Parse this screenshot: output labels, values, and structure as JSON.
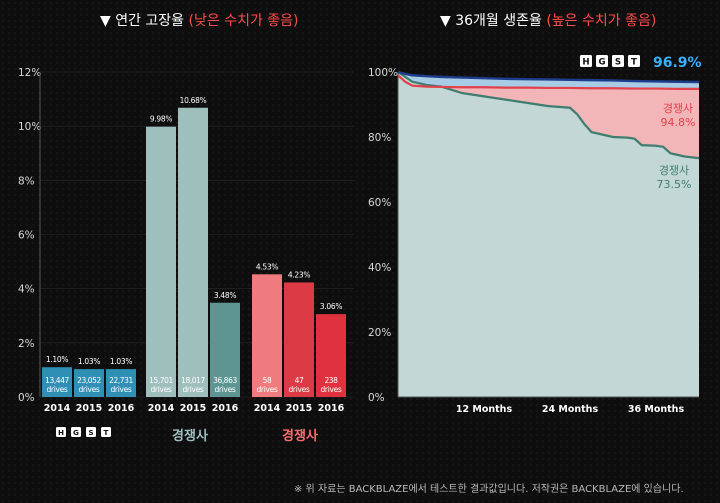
{
  "left_title": {
    "main": "▼ 연간 고장율",
    "sub": "(낮은 수치가 좋음)"
  },
  "right_title": {
    "main": "▼ 36개월 생존율",
    "sub": "(높은 수치가 좋음)"
  },
  "footnote": "※ 위 자료는 BACKBLAZE에서 테스트한 결과값입니다. 저작권은 BACKBLAZE에 있습니다.",
  "colors": {
    "hgst": "#2f8fb4",
    "competitor_a": "#9fbfbd",
    "competitor_a_dark": "#5e9592",
    "competitor_b": "#f07b7f",
    "competitor_b_dark": "#dc3a45",
    "survival_hgst": "#1e3c8c",
    "survival_comp_red": "#e0414a",
    "survival_comp_green": "#3f7d6f"
  },
  "chart_data": [
    {
      "type": "bar",
      "title": "연간 고장율",
      "ylim": [
        0,
        12
      ],
      "yticks": [
        "0%",
        "2%",
        "4%",
        "6%",
        "8%",
        "10%",
        "12%"
      ],
      "groups": [
        {
          "label": "HGST",
          "logo": [
            "H",
            "G",
            "S",
            "T"
          ]
        },
        {
          "label": "경쟁사"
        },
        {
          "label": "경쟁사"
        }
      ],
      "bars": [
        {
          "group": 0,
          "year": "2014",
          "value": 1.1,
          "value_label": "1.10%",
          "drives_count": "13,447",
          "drives_word": "drives"
        },
        {
          "group": 0,
          "year": "2015",
          "value": 1.03,
          "value_label": "1.03%",
          "drives_count": "23,052",
          "drives_word": "drives"
        },
        {
          "group": 0,
          "year": "2016",
          "value": 1.03,
          "value_label": "1.03%",
          "drives_count": "22,731",
          "drives_word": "drives"
        },
        {
          "group": 1,
          "year": "2014",
          "value": 9.98,
          "value_label": "9.98%",
          "drives_count": "15,701",
          "drives_word": "drives"
        },
        {
          "group": 1,
          "year": "2015",
          "value": 10.68,
          "value_label": "10.68%",
          "drives_count": "18,017",
          "drives_word": "drives"
        },
        {
          "group": 1,
          "year": "2016",
          "value": 3.48,
          "value_label": "3.48%",
          "drives_count": "36,863",
          "drives_word": "drives"
        },
        {
          "group": 2,
          "year": "2014",
          "value": 4.53,
          "value_label": "4.53%",
          "drives_count": "58",
          "drives_word": "drives"
        },
        {
          "group": 2,
          "year": "2015",
          "value": 4.23,
          "value_label": "4.23%",
          "drives_count": "47",
          "drives_word": "drives"
        },
        {
          "group": 2,
          "year": "2016",
          "value": 3.06,
          "value_label": "3.06%",
          "drives_count": "238",
          "drives_word": "drives"
        }
      ]
    },
    {
      "type": "area",
      "title": "36개월 생존율",
      "xlim": [
        0,
        42
      ],
      "ylim": [
        0,
        100
      ],
      "yticks": [
        "0%",
        "20%",
        "40%",
        "60%",
        "80%",
        "100%"
      ],
      "xticks": [
        {
          "value": 12,
          "label": "12 Months"
        },
        {
          "value": 24,
          "label": "24 Months"
        },
        {
          "value": 36,
          "label": "36 Months"
        }
      ],
      "series": [
        {
          "name": "HGST",
          "logo": [
            "H",
            "G",
            "S",
            "T"
          ],
          "end_label": "96.9%",
          "x": [
            0,
            1,
            2,
            4,
            6,
            9,
            12,
            15,
            18,
            21,
            24,
            27,
            30,
            33,
            36,
            39,
            42
          ],
          "y": [
            100,
            99.4,
            99.0,
            98.7,
            98.5,
            98.3,
            98.1,
            97.9,
            97.8,
            97.7,
            97.6,
            97.5,
            97.4,
            97.2,
            97.1,
            97.0,
            96.9
          ]
        },
        {
          "name": "경쟁사",
          "end_label": "94.8%",
          "x": [
            0,
            1,
            2,
            4,
            6,
            9,
            12,
            15,
            18,
            21,
            24,
            27,
            30,
            33,
            36,
            39,
            42
          ],
          "y": [
            99,
            97.0,
            95.8,
            95.5,
            95.4,
            95.3,
            95.3,
            95.2,
            95.2,
            95.1,
            95.1,
            95.0,
            95.0,
            94.9,
            94.9,
            94.8,
            94.8
          ]
        },
        {
          "name": "경쟁사",
          "end_label": "73.5%",
          "x": [
            0,
            1,
            2,
            4,
            6,
            9,
            12,
            15,
            18,
            21,
            24,
            25,
            26,
            27,
            29,
            30,
            32,
            33,
            34,
            36,
            37,
            38,
            39,
            40,
            42
          ],
          "y": [
            100,
            98.5,
            97.0,
            96.0,
            95.5,
            93.5,
            92.5,
            91.5,
            90.5,
            89.5,
            89.0,
            87.0,
            84.0,
            81.5,
            80.5,
            80.0,
            79.8,
            79.5,
            77.5,
            77.3,
            77.0,
            75.0,
            74.5,
            74.0,
            73.5
          ]
        }
      ]
    }
  ]
}
